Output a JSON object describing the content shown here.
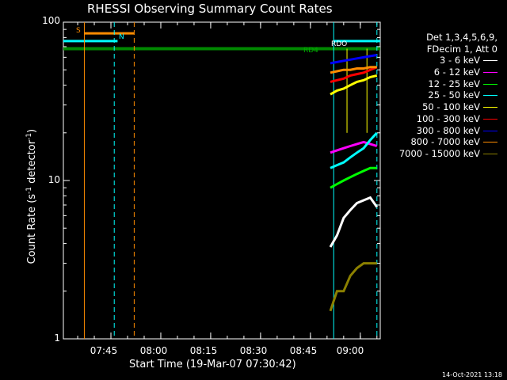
{
  "title": "RHESSI Observing Summary Count Rates",
  "xlabel": "Start Time (19-Mar-07 07:30:42)",
  "ylabel_main": "Count Rate (s",
  "ylabel_sup1": "-1",
  "ylabel_mid": " detector",
  "ylabel_sup2": "-1",
  "ylabel_end": ")",
  "timestamp": "14-Oct-2021 13:18",
  "legend": {
    "header1": "Det 1,3,4,5,6,9,",
    "header2": "FDecim 1, Att 0"
  },
  "annotations": {
    "s": "S",
    "n": "N",
    "rdo": "RDO",
    "rd4": "RD4"
  },
  "chart_data": {
    "type": "line",
    "title": "RHESSI Observing Summary Count Rates",
    "xlabel": "Start Time (19-Mar-07 07:30:42)",
    "ylabel": "Count Rate (s^-1 detector^-1)",
    "y_scale": "log",
    "ylim": [
      1,
      100
    ],
    "xlim": [
      "07:30:42",
      "09:06:00"
    ],
    "x_ticks": [
      "07:45",
      "08:00",
      "08:15",
      "08:30",
      "08:45",
      "09:00"
    ],
    "y_ticks": [
      "1",
      "10",
      "100"
    ],
    "grid": false,
    "legend_position": "right",
    "series": [
      {
        "name": "3 - 6 keV",
        "color": "#ffffff",
        "x": [
          "08:51",
          "08:53",
          "08:55",
          "08:57",
          "08:59",
          "09:01",
          "09:03",
          "09:05"
        ],
        "y": [
          3.8,
          4.5,
          5.8,
          6.5,
          7.2,
          7.5,
          7.8,
          6.8
        ]
      },
      {
        "name": "6 - 12 keV",
        "color": "#ff00ff",
        "x": [
          "08:51",
          "08:53",
          "08:55",
          "08:57",
          "08:59",
          "09:01",
          "09:03",
          "09:05"
        ],
        "y": [
          15,
          15.5,
          16,
          16.5,
          17,
          17.5,
          17,
          16.5
        ]
      },
      {
        "name": "12 - 25 keV",
        "color": "#00ff00",
        "x": [
          "08:51",
          "08:53",
          "08:55",
          "08:57",
          "08:59",
          "09:01",
          "09:03",
          "09:05"
        ],
        "y": [
          9,
          9.5,
          10,
          10.5,
          11,
          11.5,
          12,
          12
        ]
      },
      {
        "name": "25 - 50 keV",
        "color": "#00ffff",
        "x": [
          "08:51",
          "08:53",
          "08:55",
          "08:57",
          "08:59",
          "09:01",
          "09:03",
          "09:05"
        ],
        "y": [
          12,
          12.5,
          13,
          14,
          15,
          16,
          18,
          20
        ]
      },
      {
        "name": "50 - 100 keV",
        "color": "#ffff00",
        "x": [
          "08:51",
          "08:53",
          "08:55",
          "08:57",
          "08:59",
          "09:01",
          "09:03",
          "09:05"
        ],
        "y": [
          35,
          37,
          38,
          40,
          42,
          43,
          45,
          46
        ]
      },
      {
        "name": "100 - 300 keV",
        "color": "#ff0000",
        "x": [
          "08:51",
          "08:53",
          "08:55",
          "08:57",
          "08:59",
          "09:01",
          "09:03",
          "09:05"
        ],
        "y": [
          42,
          43,
          44,
          46,
          47,
          48,
          50,
          52
        ]
      },
      {
        "name": "300 - 800 keV",
        "color": "#0000ff",
        "x": [
          "08:51",
          "08:53",
          "08:55",
          "08:57",
          "08:59",
          "09:01",
          "09:03",
          "09:05"
        ],
        "y": [
          55,
          56,
          57,
          58,
          59,
          60,
          61,
          62
        ]
      },
      {
        "name": "800 - 7000 keV",
        "color": "#ff8c00",
        "x": [
          "08:51",
          "08:53",
          "08:55",
          "08:57",
          "08:59",
          "09:01",
          "09:03",
          "09:05"
        ],
        "y": [
          48,
          49,
          50,
          50,
          51,
          51,
          52,
          52
        ]
      },
      {
        "name": "7000 - 15000 keV",
        "color": "#8b8000",
        "x": [
          "08:51",
          "08:53",
          "08:55",
          "08:57",
          "08:59",
          "09:01",
          "09:03",
          "09:05"
        ],
        "y": [
          1.5,
          2,
          2,
          2.5,
          2.8,
          3,
          3,
          3
        ]
      }
    ],
    "reference_lines": {
      "green_level": 68,
      "cyan_level": 76,
      "orange_level": 85
    }
  }
}
